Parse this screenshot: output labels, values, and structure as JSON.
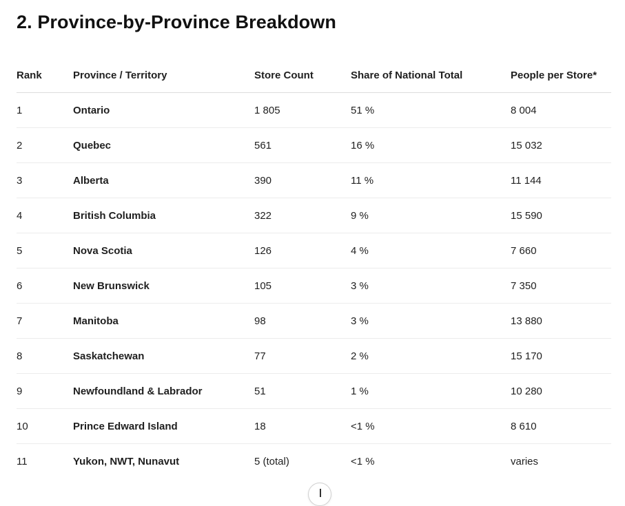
{
  "heading": "2. Province-by-Province Breakdown",
  "table": {
    "headers": {
      "rank": "Rank",
      "province": "Province / Territory",
      "store_count": "Store Count",
      "share": "Share of National Total",
      "people": "People per Store*"
    },
    "rows": [
      {
        "rank": "1",
        "province": "Ontario",
        "store_count": "1 805",
        "share": "51 %",
        "people": "8 004"
      },
      {
        "rank": "2",
        "province": "Quebec",
        "store_count": "561",
        "share": "16 %",
        "people": "15 032"
      },
      {
        "rank": "3",
        "province": "Alberta",
        "store_count": "390",
        "share": "11 %",
        "people": "11 144"
      },
      {
        "rank": "4",
        "province": "British Columbia",
        "store_count": "322",
        "share": "9 %",
        "people": "15 590"
      },
      {
        "rank": "5",
        "province": "Nova Scotia",
        "store_count": "126",
        "share": "4 %",
        "people": "7 660"
      },
      {
        "rank": "6",
        "province": "New Brunswick",
        "store_count": "105",
        "share": "3 %",
        "people": "7 350"
      },
      {
        "rank": "7",
        "province": "Manitoba",
        "store_count": "98",
        "share": "3 %",
        "people": "13 880"
      },
      {
        "rank": "8",
        "province": "Saskatchewan",
        "store_count": "77",
        "share": "2 %",
        "people": "15 170"
      },
      {
        "rank": "9",
        "province": "Newfoundland & Labrador",
        "store_count": "51",
        "share": "1 %",
        "people": "10 280"
      },
      {
        "rank": "10",
        "province": "Prince Edward Island",
        "store_count": "18",
        "share": "<1 %",
        "people": "8 610"
      },
      {
        "rank": "11",
        "province": "Yukon, NWT, Nunavut",
        "store_count": "5 (total)",
        "share": "<1 %",
        "people": "varies"
      }
    ]
  },
  "scroll_button": {
    "icon": "arrow-down-icon"
  }
}
